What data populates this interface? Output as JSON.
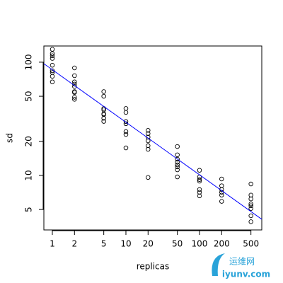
{
  "chart_data": {
    "type": "scatter",
    "xlabel": "replicas",
    "ylabel": "sd",
    "log_x": true,
    "log_y": true,
    "xlim": [
      0.767,
      702
    ],
    "ylim": [
      3.3,
      139
    ],
    "xticks": [
      1,
      2,
      5,
      10,
      20,
      50,
      100,
      200,
      500
    ],
    "yticks": [
      5,
      10,
      20,
      50,
      100
    ],
    "series": [
      {
        "color": "#000000",
        "x": [
          1,
          1,
          1,
          1,
          1,
          1,
          1,
          1,
          1,
          2,
          2,
          2,
          2,
          2,
          2,
          2,
          2,
          2,
          5,
          5,
          5,
          5,
          5,
          5,
          5,
          5,
          10,
          10,
          10,
          10,
          10,
          10,
          10,
          20,
          20,
          20,
          20,
          20,
          20,
          20,
          50,
          50,
          50,
          50,
          50,
          50,
          50,
          50,
          100,
          100,
          100,
          100,
          100,
          100,
          100,
          200,
          200,
          200,
          200,
          200,
          200,
          500,
          500,
          500,
          500,
          500,
          500,
          500,
          500
        ],
        "values": [
          130,
          119,
          114,
          108,
          94,
          84,
          81,
          75,
          67,
          89,
          76,
          67,
          64,
          61,
          55,
          54,
          49,
          47,
          55,
          50,
          39,
          38,
          35,
          34.5,
          32,
          30,
          39,
          36,
          29.9,
          28.6,
          24.4,
          23,
          17.5,
          25,
          23.4,
          21.8,
          20.2,
          18.3,
          17,
          9.6,
          18,
          15.2,
          13.9,
          13.1,
          12.4,
          11.9,
          11.2,
          9.7,
          11.1,
          9.7,
          9.2,
          8.9,
          7.5,
          7.1,
          6.6,
          9.3,
          8.1,
          7.5,
          7.1,
          6.7,
          5.9,
          8.4,
          6.7,
          6.2,
          5.6,
          5.4,
          5.1,
          4.4,
          3.9
        ]
      }
    ],
    "fit_line": {
      "color": "#0000ff",
      "x": [
        0.767,
        702
      ],
      "values": [
        97,
        4.1
      ]
    }
  },
  "watermark": {
    "title": "运维网",
    "url": "iyunv.com"
  }
}
